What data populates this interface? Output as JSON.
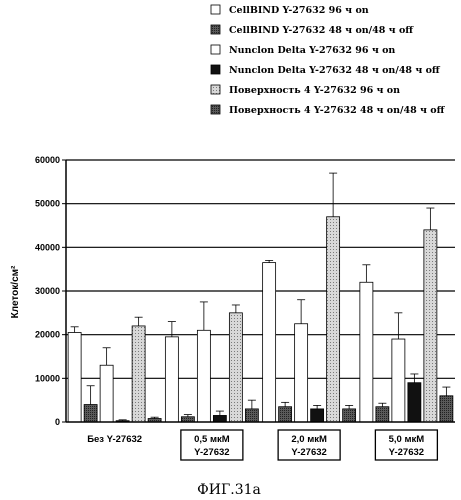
{
  "figure_caption": "ФИГ.31а",
  "colors": {
    "series_1": "#ffffff",
    "series_2": "#555555",
    "series_3": "#ffffff",
    "series_4": "#111111",
    "series_5": "#c8c8c8",
    "series_6": "#3a3a3a"
  },
  "chart_data": {
    "type": "bar",
    "title": "",
    "xlabel": "",
    "ylabel": "Клеток/см²",
    "ylim": [
      0,
      60000
    ],
    "yticks": [
      0,
      10000,
      20000,
      30000,
      40000,
      50000,
      60000
    ],
    "grid": true,
    "legend_position": "top",
    "categories": [
      "Без Y-27632",
      "0,5 мкМ Y-27632",
      "2,0 мкМ Y-27632",
      "5,0 мкМ Y-27632"
    ],
    "category_lines": [
      [
        "Без Y-27632"
      ],
      [
        "0,5 мкМ",
        "Y-27632"
      ],
      [
        "2,0 мкМ",
        "Y-27632"
      ],
      [
        "5,0 мкМ",
        "Y-27632"
      ]
    ],
    "category_boxed": [
      false,
      true,
      true,
      true
    ],
    "series": [
      {
        "name": "CellBIND Y-27632 96 ч on",
        "values": [
          20500,
          19500,
          36500,
          32000
        ],
        "errors": [
          1300,
          3500,
          500,
          4000
        ]
      },
      {
        "name": "CellBIND Y-27632 48 ч on/48 ч off",
        "values": [
          4000,
          1200,
          3500,
          3500
        ],
        "errors": [
          4300,
          500,
          1000,
          800
        ]
      },
      {
        "name": "Nunclon Delta Y-27632 96 ч on",
        "values": [
          13000,
          21000,
          22500,
          19000
        ],
        "errors": [
          4000,
          6500,
          5500,
          6000
        ]
      },
      {
        "name": "Nunclon Delta Y-27632 48 ч on/48 ч off",
        "values": [
          300,
          1500,
          3000,
          9000
        ],
        "errors": [
          200,
          1000,
          800,
          2000
        ]
      },
      {
        "name": "Поверхность 4 Y-27632 96 ч on",
        "values": [
          22000,
          25000,
          47000,
          44000
        ],
        "errors": [
          2000,
          1800,
          10000,
          5000
        ]
      },
      {
        "name": "Поверхность 4 Y-27632 48 ч on/48 ч off",
        "values": [
          800,
          3000,
          3000,
          6000
        ],
        "errors": [
          300,
          2000,
          800,
          2000
        ]
      }
    ]
  }
}
